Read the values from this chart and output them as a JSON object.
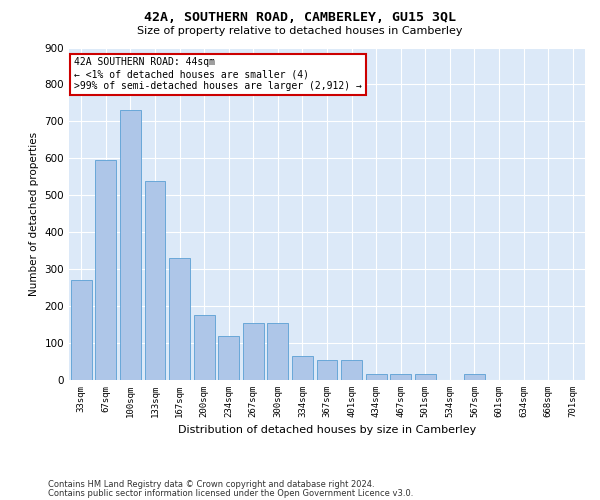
{
  "title": "42A, SOUTHERN ROAD, CAMBERLEY, GU15 3QL",
  "subtitle": "Size of property relative to detached houses in Camberley",
  "xlabel": "Distribution of detached houses by size in Camberley",
  "ylabel": "Number of detached properties",
  "categories": [
    "33sqm",
    "67sqm",
    "100sqm",
    "133sqm",
    "167sqm",
    "200sqm",
    "234sqm",
    "267sqm",
    "300sqm",
    "334sqm",
    "367sqm",
    "401sqm",
    "434sqm",
    "467sqm",
    "501sqm",
    "534sqm",
    "567sqm",
    "601sqm",
    "634sqm",
    "668sqm",
    "701sqm"
  ],
  "values": [
    270,
    595,
    730,
    540,
    330,
    175,
    120,
    155,
    155,
    65,
    55,
    55,
    15,
    15,
    15,
    0,
    15,
    0,
    0,
    0,
    0
  ],
  "bar_color": "#aec6e8",
  "bar_edge_color": "#5a9fd4",
  "background_color": "#dce9f8",
  "grid_color": "#ffffff",
  "ylim": [
    0,
    900
  ],
  "yticks": [
    0,
    100,
    200,
    300,
    400,
    500,
    600,
    700,
    800,
    900
  ],
  "annotation_text": "42A SOUTHERN ROAD: 44sqm\n← <1% of detached houses are smaller (4)\n>99% of semi-detached houses are larger (2,912) →",
  "annotation_box_color": "#ffffff",
  "annotation_box_edge": "#cc0000",
  "footer_line1": "Contains HM Land Registry data © Crown copyright and database right 2024.",
  "footer_line2": "Contains public sector information licensed under the Open Government Licence v3.0."
}
